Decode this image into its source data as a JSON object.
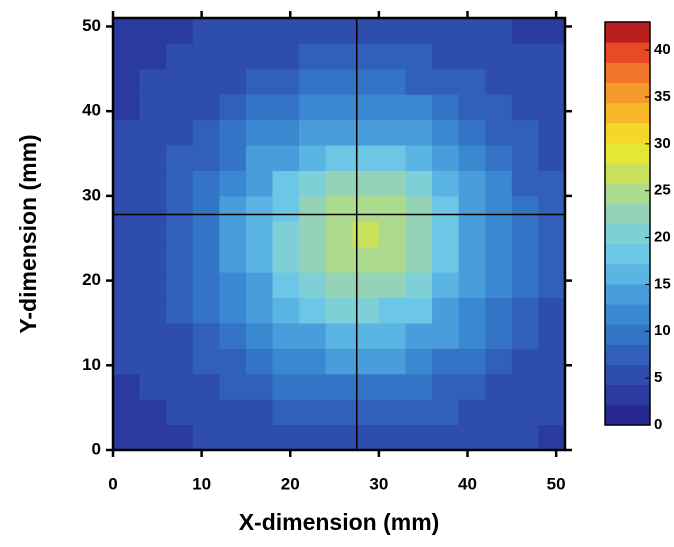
{
  "chart_data": {
    "type": "heatmap",
    "xlabel": "X-dimension (mm)",
    "ylabel": "Y-dimension (mm)",
    "xlim": [
      0,
      51
    ],
    "ylim": [
      0,
      51
    ],
    "xticks": [
      0,
      10,
      20,
      30,
      40,
      50
    ],
    "yticks": [
      0,
      10,
      20,
      30,
      40,
      50
    ],
    "xbins": [
      0,
      3,
      6,
      9,
      12,
      15,
      18,
      21,
      24,
      27,
      30,
      33,
      36,
      39,
      42,
      45,
      48,
      51
    ],
    "ybins": [
      0,
      3,
      6,
      9,
      12,
      15,
      18,
      21,
      24,
      27,
      30,
      33,
      36,
      39,
      42,
      45,
      48,
      51
    ],
    "z": [
      [
        4,
        4,
        4,
        5,
        5,
        5,
        6,
        6,
        6,
        6,
        6,
        6,
        6,
        5,
        5,
        5,
        4
      ],
      [
        4,
        4,
        5,
        5,
        6,
        6,
        7,
        7,
        8,
        8,
        8,
        7,
        7,
        6,
        5,
        5,
        5
      ],
      [
        4,
        5,
        5,
        6,
        7,
        8,
        9,
        9,
        10,
        10,
        10,
        9,
        8,
        7,
        6,
        6,
        5
      ],
      [
        5,
        5,
        6,
        7,
        8,
        9,
        11,
        12,
        13,
        13,
        13,
        12,
        10,
        9,
        7,
        6,
        5
      ],
      [
        5,
        5,
        6,
        8,
        9,
        11,
        13,
        15,
        16,
        17,
        16,
        15,
        13,
        11,
        9,
        7,
        6
      ],
      [
        5,
        6,
        7,
        9,
        11,
        13,
        16,
        18,
        20,
        20,
        19,
        18,
        15,
        12,
        10,
        8,
        6
      ],
      [
        5,
        6,
        7,
        9,
        12,
        15,
        18,
        21,
        23,
        23,
        22,
        20,
        17,
        14,
        11,
        9,
        7
      ],
      [
        5,
        6,
        8,
        10,
        13,
        16,
        20,
        23,
        25,
        25,
        24,
        22,
        19,
        15,
        12,
        9,
        7
      ],
      [
        5,
        6,
        8,
        10,
        13,
        17,
        20,
        23,
        25,
        26,
        25,
        22,
        19,
        15,
        12,
        9,
        7
      ],
      [
        5,
        6,
        8,
        10,
        13,
        16,
        19,
        22,
        24,
        25,
        24,
        22,
        18,
        15,
        12,
        9,
        7
      ],
      [
        5,
        6,
        7,
        9,
        12,
        15,
        18,
        20,
        22,
        22,
        22,
        20,
        17,
        14,
        11,
        8,
        7
      ],
      [
        5,
        6,
        7,
        8,
        10,
        13,
        15,
        17,
        19,
        19,
        18,
        17,
        14,
        12,
        10,
        8,
        6
      ],
      [
        5,
        5,
        6,
        7,
        9,
        11,
        12,
        14,
        15,
        15,
        15,
        14,
        12,
        10,
        8,
        7,
        6
      ],
      [
        4,
        5,
        5,
        6,
        7,
        9,
        10,
        11,
        12,
        12,
        12,
        11,
        10,
        8,
        7,
        6,
        5
      ],
      [
        4,
        5,
        5,
        5,
        6,
        7,
        8,
        9,
        9,
        9,
        9,
        8,
        8,
        7,
        6,
        5,
        5
      ],
      [
        4,
        4,
        5,
        5,
        5,
        6,
        6,
        7,
        7,
        7,
        7,
        7,
        6,
        6,
        5,
        5,
        5
      ],
      [
        4,
        4,
        4,
        5,
        5,
        5,
        5,
        6,
        6,
        6,
        6,
        6,
        5,
        5,
        5,
        4,
        4
      ]
    ],
    "clim": [
      0,
      43
    ],
    "cticks": [
      0,
      5,
      10,
      15,
      20,
      25,
      30,
      35,
      40
    ],
    "colors": [
      "#27288f",
      "#2b3a9e",
      "#2f4dad",
      "#3160bb",
      "#3474c6",
      "#3a88d0",
      "#4a9ddb",
      "#5ab4e4",
      "#6cc6e6",
      "#7fcfd6",
      "#95d3b8",
      "#addb8d",
      "#c9e15d",
      "#e6e634",
      "#f7d62b",
      "#f8b72a",
      "#f59a2d",
      "#f0742a",
      "#e84a26",
      "#b81e1e"
    ],
    "crosshair": {
      "x": 27.5,
      "y": 27.8
    }
  }
}
